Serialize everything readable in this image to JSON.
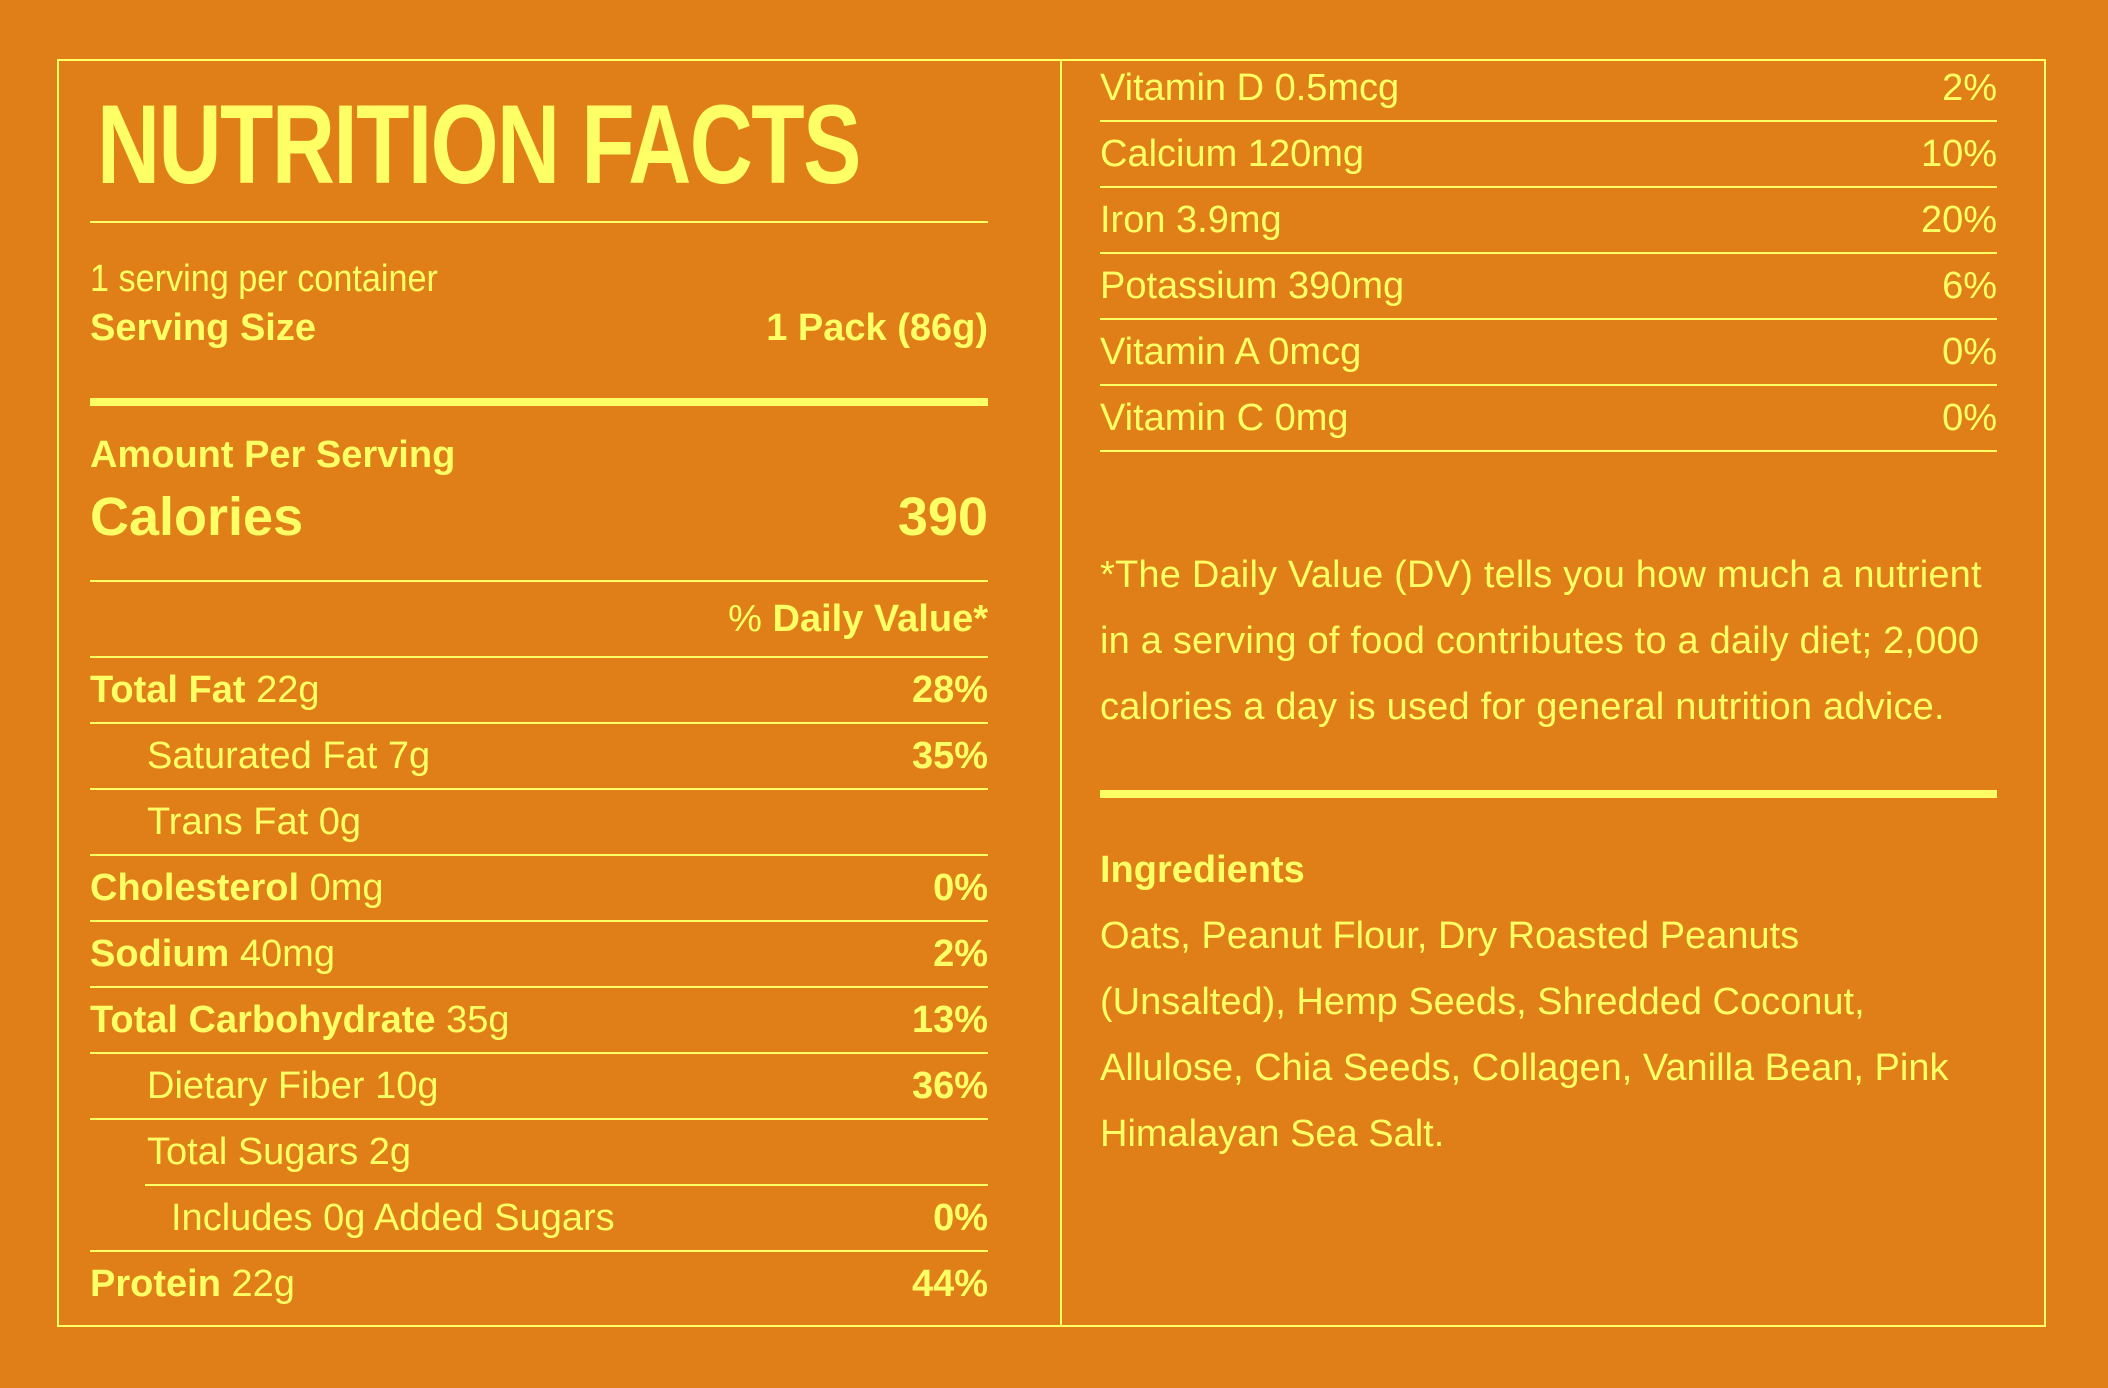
{
  "colors": {
    "background": "#E07F18",
    "foreground": "#FFFF66"
  },
  "label": {
    "title": "NUTRITION FACTS",
    "servings_per_container": "1 serving per container",
    "serving_size_label": "Serving Size",
    "serving_size_value": "1 Pack (86g)",
    "amount_per_serving": "Amount Per Serving",
    "calories_label": "Calories",
    "calories_value": "390",
    "dv_header_prefix": "%",
    "dv_header_bold": "Daily Value*"
  },
  "nutrients": [
    {
      "name": "Total Fat",
      "amount": "22g",
      "dv": "28%",
      "bold": true,
      "indent": 0
    },
    {
      "name": "Saturated Fat",
      "amount": "7g",
      "dv": "35%",
      "bold": false,
      "indent": 1
    },
    {
      "name": "Trans Fat",
      "amount": "0g",
      "dv": "",
      "bold": false,
      "indent": 1
    },
    {
      "name": "Cholesterol",
      "amount": "0mg",
      "dv": "0%",
      "bold": true,
      "indent": 0
    },
    {
      "name": "Sodium",
      "amount": "40mg",
      "dv": "2%",
      "bold": true,
      "indent": 0
    },
    {
      "name": "Total Carbohydrate",
      "amount": "35g",
      "dv": "13%",
      "bold": true,
      "indent": 0
    },
    {
      "name": "Dietary Fiber",
      "amount": "10g",
      "dv": "36%",
      "bold": false,
      "indent": 1
    },
    {
      "name": "Total Sugars",
      "amount": "2g",
      "dv": "",
      "bold": false,
      "indent": 1
    },
    {
      "name": "Includes 0g Added Sugars",
      "amount": "",
      "dv": "0%",
      "bold": false,
      "indent": 2
    },
    {
      "name": "Protein",
      "amount": "22g",
      "dv": "44%",
      "bold": true,
      "indent": 0
    }
  ],
  "vitamins": [
    {
      "name": "Vitamin D 0.5mcg",
      "dv": "2%"
    },
    {
      "name": "Calcium 120mg",
      "dv": "10%"
    },
    {
      "name": "Iron 3.9mg",
      "dv": "20%"
    },
    {
      "name": "Potassium 390mg",
      "dv": "6%"
    },
    {
      "name": "Vitamin A 0mcg",
      "dv": "0%"
    },
    {
      "name": "Vitamin C 0mg",
      "dv": "0%"
    }
  ],
  "footnote": "*The Daily Value (DV) tells you how much a nutrient in a serving of food contributes to a daily diet; 2,000 calories a day is used for general nutrition advice.",
  "ingredients": {
    "title": "Ingredients",
    "text": "Oats, Peanut Flour, Dry Roasted Peanuts (Unsalted), Hemp Seeds, Shredded Coconut, Allulose, Chia Seeds, Collagen, Vanilla Bean, Pink Himalayan Sea Salt."
  }
}
